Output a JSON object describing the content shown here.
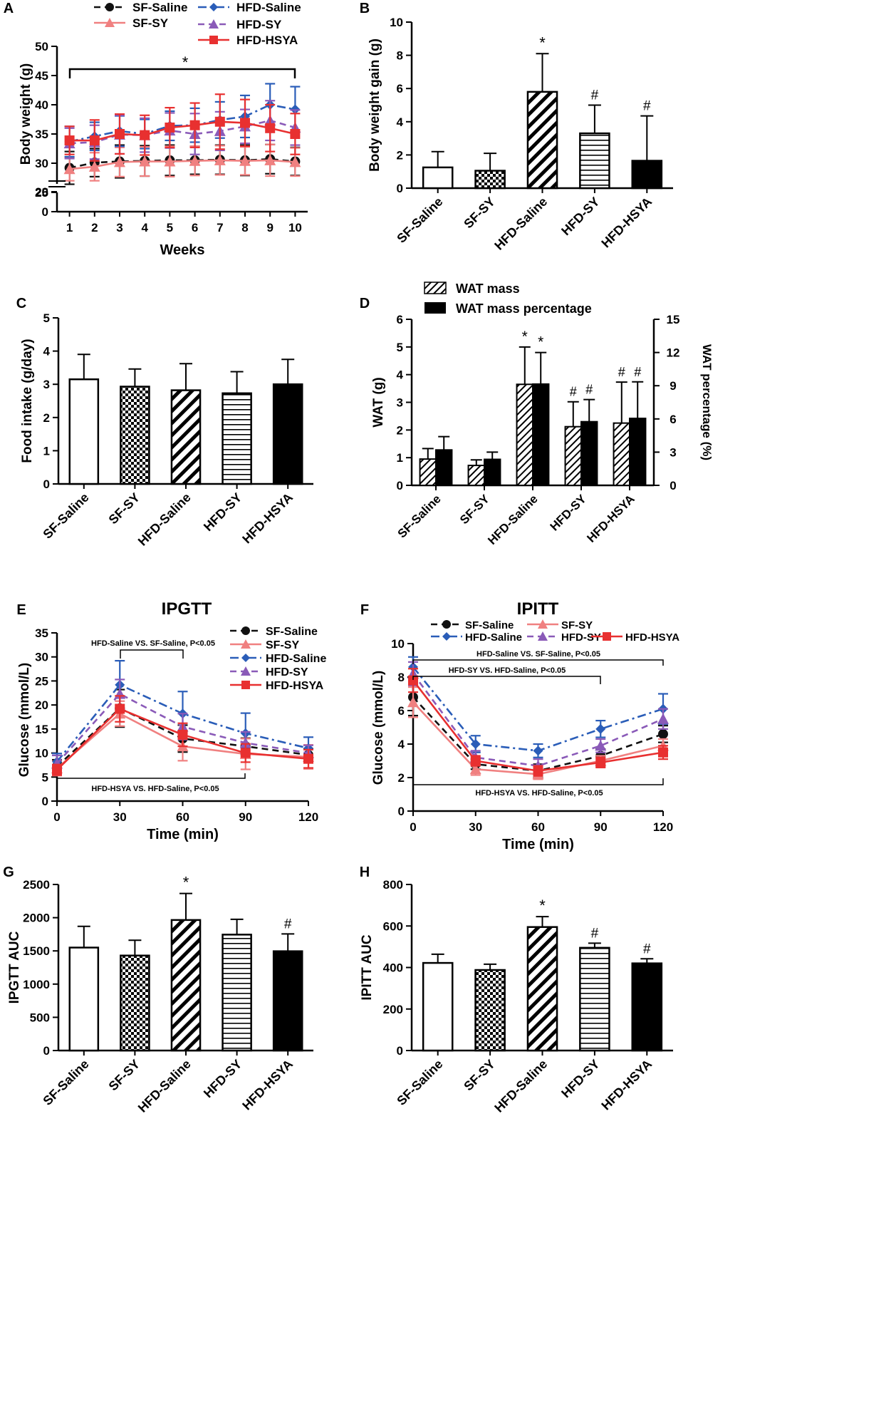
{
  "colors": {
    "sf_saline": "#111111",
    "sf_sy": "#f08080",
    "hfd_saline": "#2a5db8",
    "hfd_sy": "#8a5ab8",
    "hfd_hsya": "#e83030"
  },
  "chart_data": [
    {
      "panel": "A",
      "type": "line",
      "title": "",
      "xlabel": "Weeks",
      "ylabel": "Body weight (g)",
      "x": [
        1,
        2,
        3,
        4,
        5,
        6,
        7,
        8,
        9,
        10
      ],
      "ylim": [
        0,
        50
      ],
      "y_break": [
        20,
        25
      ],
      "yticks": [
        "50",
        "45",
        "40",
        "35",
        "30",
        "25",
        "20",
        "0"
      ],
      "xticks": [
        "1",
        "2",
        "3",
        "4",
        "5",
        "6",
        "7",
        "8",
        "9",
        "10"
      ],
      "series": [
        {
          "name": "SF-Saline",
          "values": [
            29.2,
            30.1,
            30.3,
            30.4,
            30.5,
            30.5,
            30.6,
            30.5,
            30.7,
            30.3
          ],
          "err": [
            2.8,
            2.4,
            2.8,
            2.6,
            2.6,
            2.4,
            2.5,
            2.6,
            2.5,
            2.4
          ]
        },
        {
          "name": "SF-SY",
          "values": [
            29.0,
            29.4,
            30.2,
            30.3,
            30.3,
            30.4,
            30.5,
            30.4,
            30.5,
            30.2
          ],
          "err": [
            2.0,
            2.4,
            2.5,
            2.5,
            2.6,
            2.5,
            2.5,
            2.4,
            2.7,
            2.4
          ]
        },
        {
          "name": "HFD-Saline",
          "values": [
            33.7,
            34.6,
            35.5,
            35.0,
            36.4,
            36.5,
            37.4,
            38.0,
            40.0,
            39.2
          ],
          "err": [
            2.6,
            2.4,
            2.6,
            2.5,
            2.5,
            2.9,
            3.1,
            3.6,
            3.6,
            3.9
          ]
        },
        {
          "name": "HFD-SY",
          "values": [
            33.4,
            33.6,
            34.9,
            34.8,
            35.6,
            35.0,
            35.5,
            36.3,
            37.3,
            36.1
          ],
          "err": [
            2.6,
            2.9,
            3.3,
            2.9,
            3.0,
            3.5,
            3.3,
            2.9,
            3.4,
            3.0
          ]
        },
        {
          "name": "HFD-HSYA",
          "values": [
            33.9,
            33.9,
            35.0,
            34.8,
            36.1,
            36.5,
            37.1,
            36.9,
            36.0,
            35.0
          ],
          "err": [
            2.4,
            3.5,
            3.4,
            3.4,
            3.4,
            3.8,
            4.7,
            4.0,
            4.0,
            3.5
          ]
        }
      ],
      "annotation": "*"
    },
    {
      "panel": "B",
      "type": "bar",
      "title": "",
      "xlabel": "",
      "ylabel": "Body weight gain (g)",
      "categories": [
        "SF-Saline",
        "SF-SY",
        "HFD-Saline",
        "HFD-SY",
        "HFD-HSYA"
      ],
      "values": [
        1.25,
        1.05,
        5.8,
        3.3,
        1.65
      ],
      "err": [
        0.95,
        1.05,
        2.3,
        1.7,
        2.7
      ],
      "sig": [
        "",
        "",
        "*",
        "#",
        "#"
      ],
      "ylim": [
        0,
        10
      ],
      "yticks": [
        "10",
        "8",
        "6",
        "4",
        "2",
        "0"
      ]
    },
    {
      "panel": "C",
      "type": "bar",
      "title": "",
      "xlabel": "",
      "ylabel": "Food intake (g/day)",
      "categories": [
        "SF-Saline",
        "SF-SY",
        "HFD-Saline",
        "HFD-SY",
        "HFD-HSYA"
      ],
      "values": [
        3.15,
        2.93,
        2.82,
        2.73,
        3.0
      ],
      "err": [
        0.75,
        0.53,
        0.8,
        0.65,
        0.75
      ],
      "sig": [
        "",
        "",
        "",
        "",
        ""
      ],
      "ylim": [
        0,
        5
      ],
      "yticks": [
        "5",
        "4",
        "3",
        "2",
        "1",
        "0"
      ]
    },
    {
      "panel": "D",
      "type": "bar",
      "title": "",
      "xlabel": "",
      "ylabel": "WAT (g)",
      "ylabel_right": "WAT percentage (%)",
      "categories": [
        "SF-Saline",
        "SF-SY",
        "HFD-Saline",
        "HFD-SY",
        "HFD-HSYA"
      ],
      "series": [
        {
          "name": "WAT mass",
          "values": [
            0.95,
            0.72,
            3.65,
            2.12,
            2.25
          ],
          "err": [
            0.38,
            0.2,
            1.35,
            0.9,
            1.48
          ],
          "sig": [
            "",
            "",
            "*",
            "#",
            "#"
          ]
        },
        {
          "name": "WAT mass percentage",
          "values": [
            3.2,
            2.35,
            9.15,
            5.75,
            6.05
          ],
          "err": [
            1.2,
            0.65,
            2.85,
            2.0,
            3.3
          ],
          "sig": [
            "",
            "",
            "*",
            "#",
            "#"
          ]
        }
      ],
      "ylim": [
        0,
        6
      ],
      "ylim_right": [
        0,
        15
      ],
      "yticks": [
        "6",
        "5",
        "4",
        "3",
        "2",
        "1",
        "0"
      ],
      "yticks_right": [
        "15",
        "12",
        "9",
        "6",
        "3",
        "0"
      ]
    },
    {
      "panel": "E",
      "type": "line",
      "title": "IPGTT",
      "xlabel": "Time (min)",
      "ylabel": "Glucose (mmol/L)",
      "x": [
        0,
        30,
        60,
        90,
        120
      ],
      "ylim": [
        0,
        35
      ],
      "yticks": [
        "35",
        "30",
        "25",
        "20",
        "15",
        "10",
        "5",
        "0"
      ],
      "xticks": [
        "0",
        "30",
        "60",
        "90",
        "120"
      ],
      "series": [
        {
          "name": "SF-Saline",
          "values": [
            7.2,
            19.3,
            13.0,
            11.4,
            9.6
          ],
          "err": [
            1.4,
            3.9,
            2.8,
            1.7,
            1.3
          ]
        },
        {
          "name": "SF-SY",
          "values": [
            6.8,
            18.2,
            11.4,
            9.8,
            9.2
          ],
          "err": [
            1.5,
            2.6,
            3.0,
            3.2,
            2.5
          ]
        },
        {
          "name": "HFD-Saline",
          "values": [
            8.2,
            24.2,
            18.2,
            14.1,
            11.0
          ],
          "err": [
            1.7,
            5.0,
            4.6,
            4.2,
            2.3
          ]
        },
        {
          "name": "HFD-SY",
          "values": [
            7.8,
            22.3,
            15.5,
            12.1,
            10.0
          ],
          "err": [
            1.7,
            3.0,
            2.7,
            2.3,
            1.6
          ]
        },
        {
          "name": "HFD-HSYA",
          "values": [
            6.5,
            19.2,
            13.8,
            10.0,
            8.8
          ],
          "err": [
            1.1,
            2.7,
            2.4,
            1.9,
            1.9
          ]
        }
      ],
      "annotations": [
        "HFD-Saline VS. SF-Saline, P<0.05",
        "HFD-HSYA VS. HFD-Saline, P<0.05"
      ]
    },
    {
      "panel": "F",
      "type": "line",
      "title": "IPITT",
      "xlabel": "Time (min)",
      "ylabel": "Glucose (mmol/L)",
      "x": [
        0,
        30,
        60,
        90,
        120
      ],
      "ylim": [
        0,
        10
      ],
      "yticks": [
        "10",
        "8",
        "6",
        "4",
        "2",
        "0"
      ],
      "xticks": [
        "0",
        "30",
        "60",
        "90",
        "120"
      ],
      "series": [
        {
          "name": "SF-Saline",
          "values": [
            6.8,
            2.8,
            2.4,
            3.3,
            4.6
          ],
          "err": [
            1.1,
            0.3,
            0.4,
            0.4,
            0.5
          ]
        },
        {
          "name": "SF-SY",
          "values": [
            6.5,
            2.5,
            2.2,
            3.0,
            3.9
          ],
          "err": [
            0.9,
            0.35,
            0.3,
            0.3,
            0.4
          ]
        },
        {
          "name": "HFD-Saline",
          "values": [
            8.6,
            4.0,
            3.6,
            4.9,
            6.1
          ],
          "err": [
            0.6,
            0.5,
            0.4,
            0.5,
            0.9
          ]
        },
        {
          "name": "HFD-SY",
          "values": [
            8.2,
            3.2,
            2.7,
            3.9,
            5.5
          ],
          "err": [
            0.7,
            0.4,
            0.4,
            0.4,
            0.6
          ]
        },
        {
          "name": "HFD-HSYA",
          "values": [
            7.8,
            3.0,
            2.4,
            2.9,
            3.5
          ],
          "err": [
            0.7,
            0.3,
            0.3,
            0.3,
            0.4
          ]
        }
      ],
      "annotations": [
        "HFD-Saline VS. SF-Saline, P<0.05",
        "HFD-SY VS. HFD-Saline, P<0.05",
        "HFD-HSYA VS. HFD-Saline, P<0.05"
      ]
    },
    {
      "panel": "G",
      "type": "bar",
      "title": "",
      "xlabel": "",
      "ylabel": "IPGTT AUC",
      "categories": [
        "SF-Saline",
        "SF-SY",
        "HFD-Saline",
        "HFD-SY",
        "HFD-HSYA"
      ],
      "values": [
        1550,
        1430,
        1965,
        1745,
        1495
      ],
      "err": [
        320,
        230,
        400,
        230,
        260
      ],
      "sig": [
        "",
        "",
        "*",
        "",
        "#"
      ],
      "ylim": [
        0,
        2500
      ],
      "yticks": [
        "2500",
        "2000",
        "1500",
        "1000",
        "500",
        "0"
      ]
    },
    {
      "panel": "H",
      "type": "bar",
      "title": "",
      "xlabel": "",
      "ylabel": "IPITT AUC",
      "categories": [
        "SF-Saline",
        "SF-SY",
        "HFD-Saline",
        "HFD-SY",
        "HFD-HSYA"
      ],
      "values": [
        422,
        388,
        595,
        495,
        420
      ],
      "err": [
        42,
        28,
        50,
        22,
        22
      ],
      "sig": [
        "",
        "",
        "*",
        "#",
        "#"
      ],
      "ylim": [
        0,
        800
      ],
      "yticks": [
        "800",
        "600",
        "400",
        "200",
        "0"
      ]
    }
  ]
}
